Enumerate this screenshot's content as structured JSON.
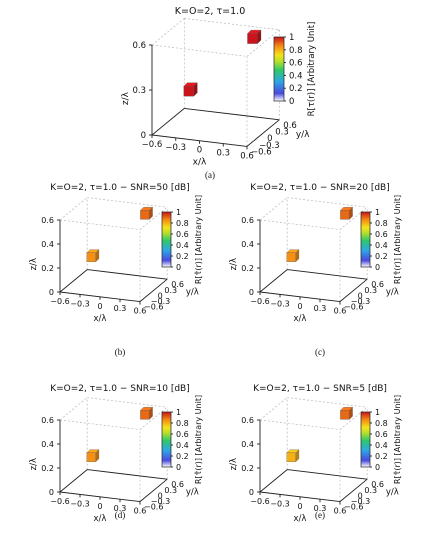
{
  "figure": {
    "captions": [
      "(a)",
      "(b)",
      "(c)",
      "(d)",
      "(e)"
    ]
  },
  "chart_data": [
    {
      "type": "scatter",
      "title": "K=O=2, τ=1.0",
      "xlabel": "x/λ",
      "ylabel": "y/λ",
      "zlabel": "z/λ",
      "x_ticks": [
        "−0.6",
        "−0.3",
        "0",
        "0.3",
        "0.6"
      ],
      "y_ticks": [
        "−0.6",
        "−0.3",
        "0",
        "0.3",
        "0.6"
      ],
      "z_ticks": [
        "0",
        "0.3",
        "0.6"
      ],
      "colorbar_label": "R[τ(r)] [Arbitrary Unit]",
      "colorbar_ticks": [
        "0",
        "0.2",
        "0.4",
        "0.6",
        "0.8",
        "1"
      ],
      "colorbar_range": [
        0,
        1
      ],
      "grid": true,
      "points": [
        {
          "x": -0.3,
          "y": -0.3,
          "z": 0.3,
          "value": 1.0
        },
        {
          "x": 0.3,
          "y": 0.3,
          "z": 0.6,
          "value": 1.0
        }
      ]
    },
    {
      "type": "scatter",
      "title": "K=O=2, τ=1.0 − SNR=50 [dB]",
      "xlabel": "x/λ",
      "ylabel": "y/λ",
      "zlabel": "z/λ",
      "x_ticks": [
        "−0.6",
        "−0.3",
        "0",
        "0.3",
        "0.6"
      ],
      "y_ticks": [
        "−0.6",
        "−0.3",
        "0",
        "0.3",
        "0.6"
      ],
      "z_ticks": [
        "0",
        "0.2",
        "0.4",
        "0.6"
      ],
      "colorbar_label": "R[τ̂(r)] [Arbitrary Unit]",
      "colorbar_ticks": [
        "0",
        "0.2",
        "0.4",
        "0.6",
        "0.8",
        "1"
      ],
      "colorbar_range": [
        0,
        1
      ],
      "grid": true,
      "points": [
        {
          "x": -0.3,
          "y": -0.3,
          "z": 0.3,
          "value": 0.85
        },
        {
          "x": 0.3,
          "y": 0.3,
          "z": 0.6,
          "value": 0.9
        }
      ]
    },
    {
      "type": "scatter",
      "title": "K=O=2, τ=1.0 − SNR=20 [dB]",
      "xlabel": "x/λ",
      "ylabel": "y/λ",
      "zlabel": "z/λ",
      "x_ticks": [
        "−0.6",
        "−0.3",
        "0",
        "0.3",
        "0.6"
      ],
      "y_ticks": [
        "−0.6",
        "−0.3",
        "0",
        "0.3",
        "0.6"
      ],
      "z_ticks": [
        "0",
        "0.2",
        "0.4",
        "0.6"
      ],
      "colorbar_label": "R[τ̂(r)] [Arbitrary Unit]",
      "colorbar_ticks": [
        "0",
        "0.2",
        "0.4",
        "0.6",
        "0.8",
        "1"
      ],
      "colorbar_range": [
        0,
        1
      ],
      "grid": true,
      "points": [
        {
          "x": -0.3,
          "y": -0.3,
          "z": 0.3,
          "value": 0.85
        },
        {
          "x": 0.3,
          "y": 0.3,
          "z": 0.6,
          "value": 0.9
        }
      ]
    },
    {
      "type": "scatter",
      "title": "K=O=2, τ=1.0 − SNR=10 [dB]",
      "xlabel": "x/λ",
      "ylabel": "y/λ",
      "zlabel": "z/λ",
      "x_ticks": [
        "−0.6",
        "−0.3",
        "0",
        "0.3",
        "0.6"
      ],
      "y_ticks": [
        "−0.6",
        "−0.3",
        "0",
        "0.3",
        "0.6"
      ],
      "z_ticks": [
        "0",
        "0.2",
        "0.4",
        "0.6"
      ],
      "colorbar_label": "R[τ̂(r)] [Arbitrary Unit]",
      "colorbar_ticks": [
        "0",
        "0.2",
        "0.4",
        "0.6",
        "0.8",
        "1"
      ],
      "colorbar_range": [
        0,
        1
      ],
      "grid": true,
      "points": [
        {
          "x": -0.3,
          "y": -0.3,
          "z": 0.3,
          "value": 0.85
        },
        {
          "x": 0.3,
          "y": 0.3,
          "z": 0.6,
          "value": 0.9
        }
      ]
    },
    {
      "type": "scatter",
      "title": "K=O=2, τ=1.0 − SNR=5 [dB]",
      "xlabel": "x/λ",
      "ylabel": "y/λ",
      "zlabel": "z/λ",
      "x_ticks": [
        "−0.6",
        "−0.3",
        "0",
        "0.3",
        "0.6"
      ],
      "y_ticks": [
        "−0.6",
        "−0.3",
        "0",
        "0.3",
        "0.6"
      ],
      "z_ticks": [
        "0",
        "0.2",
        "0.4",
        "0.6"
      ],
      "colorbar_label": "R[τ̂(r)] [Arbitrary Unit]",
      "colorbar_ticks": [
        "0",
        "0.2",
        "0.4",
        "0.6",
        "0.8",
        "1"
      ],
      "colorbar_range": [
        0,
        1
      ],
      "grid": true,
      "points": [
        {
          "x": -0.3,
          "y": -0.3,
          "z": 0.3,
          "value": 0.8
        },
        {
          "x": 0.3,
          "y": 0.3,
          "z": 0.6,
          "value": 0.9
        }
      ]
    }
  ]
}
